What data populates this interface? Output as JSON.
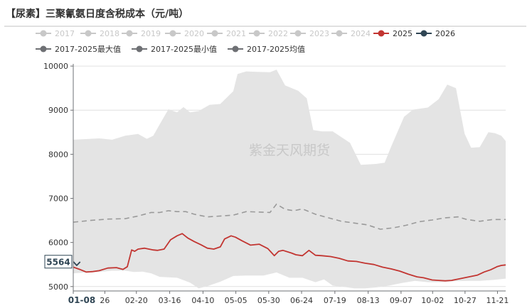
{
  "title": "【尿素】三聚氰氨日度含税成本（元/吨）",
  "watermark": "紫金天风期货",
  "latest_label": "5564",
  "colors": {
    "band": "#e4e4e4",
    "legend_inactive": "#c8c8c8",
    "series_2025": "#c23531",
    "series_2026": "#2f4554",
    "avg": "#9a9a9a",
    "stat_icon": "#6e7074",
    "title_rule": "#c0c0c0",
    "axis": "#6e7074",
    "grid": "#e0e0e0",
    "text": "#333333",
    "watermark": "#c8c8c8"
  },
  "legend_rows": [
    [
      {
        "label": "2017",
        "state": "inactive"
      },
      {
        "label": "2018",
        "state": "inactive"
      },
      {
        "label": "2019",
        "state": "inactive"
      },
      {
        "label": "2020",
        "state": "inactive"
      },
      {
        "label": "2021",
        "state": "inactive"
      },
      {
        "label": "2022",
        "state": "inactive"
      },
      {
        "label": "2023",
        "state": "inactive"
      },
      {
        "label": "2024",
        "state": "inactive"
      },
      {
        "label": "2025",
        "state": "active",
        "color_key": "series_2025"
      },
      {
        "label": "2026",
        "state": "active",
        "color_key": "series_2026"
      }
    ],
    [
      {
        "label": "2017-2025最大值",
        "state": "active",
        "color_key": "stat_icon"
      },
      {
        "label": "2017-2025最小值",
        "state": "active",
        "color_key": "stat_icon"
      },
      {
        "label": "2017-2025均值",
        "state": "active",
        "color_key": "stat_icon"
      }
    ]
  ],
  "chart_data": {
    "type": "area",
    "title": "【尿素】三聚氰氨日度含税成本（元/吨）",
    "y_ticks": [
      5000,
      6000,
      7000,
      8000,
      9000,
      10000
    ],
    "ylim": [
      4900,
      10050
    ],
    "x_ticks": [
      "01-08",
      "26",
      "02-20",
      "03-16",
      "04-10",
      "05-05",
      "05-30",
      "06-24",
      "07-19",
      "08-13",
      "09-07",
      "10-02",
      "10-27",
      "11-21"
    ],
    "x_domain": [
      0,
      100
    ],
    "x_tick_positions": [
      0,
      7.3,
      14.6,
      22.3,
      30.0,
      37.6,
      45.2,
      52.8,
      60.5,
      68.2,
      75.8,
      83.1,
      90.6,
      98.1
    ],
    "highlight_tick": "01-08",
    "max_series": {
      "name": "2017-2025最大值",
      "x": [
        0,
        6,
        9,
        12,
        15,
        17,
        18.5,
        20,
        22,
        24,
        25.5,
        27,
        29,
        31.5,
        34,
        37,
        38,
        40,
        42.5,
        45.5,
        47,
        49,
        52,
        54,
        55.5,
        57.5,
        60,
        64,
        66.5,
        70,
        72,
        73.5,
        76.5,
        78.5,
        82,
        84.5,
        86.5,
        88.5,
        90.5,
        92,
        94,
        96,
        97.5,
        99,
        100
      ],
      "values": [
        8330,
        8360,
        8330,
        8420,
        8460,
        8350,
        8420,
        8680,
        9020,
        8950,
        9070,
        8950,
        8980,
        9120,
        9140,
        9430,
        9820,
        9880,
        9870,
        9860,
        9920,
        9560,
        9440,
        9270,
        8550,
        8520,
        8520,
        8260,
        7760,
        7780,
        7810,
        8170,
        8850,
        9010,
        9060,
        9250,
        9580,
        9500,
        8470,
        8150,
        8160,
        8500,
        8480,
        8420,
        8300
      ]
    },
    "min_series": {
      "name": "2017-2025最小值",
      "x": [
        0,
        3,
        6,
        9,
        12,
        14,
        16,
        18,
        20,
        24,
        27,
        29,
        31,
        34,
        37,
        40,
        44,
        47,
        50,
        53,
        56,
        58,
        60,
        62,
        65,
        67.5,
        70,
        73,
        76,
        79,
        82,
        85,
        88,
        91,
        94,
        97,
        100
      ],
      "values": [
        5300,
        5320,
        5330,
        5360,
        5360,
        5330,
        5340,
        5300,
        5220,
        5200,
        5090,
        4960,
        5010,
        5110,
        5240,
        5250,
        5250,
        5320,
        5200,
        5200,
        5100,
        5160,
        5020,
        5000,
        4960,
        4960,
        4980,
        5020,
        5080,
        5130,
        5100,
        5100,
        5120,
        5130,
        5130,
        5150,
        5180
      ]
    },
    "series": [
      {
        "name": "2017-2025均值",
        "style": "dashed",
        "color_key": "avg",
        "x": [
          0,
          4,
          8,
          12,
          15,
          18,
          20,
          22,
          24,
          26,
          28,
          31,
          34,
          37,
          40,
          43,
          45.5,
          47,
          49,
          51,
          53,
          56,
          59,
          62,
          65,
          68,
          71,
          74,
          77,
          80,
          83,
          86,
          89,
          91,
          94,
          97,
          100
        ],
        "values": [
          6460,
          6500,
          6530,
          6540,
          6600,
          6680,
          6680,
          6720,
          6700,
          6700,
          6640,
          6580,
          6600,
          6620,
          6700,
          6690,
          6680,
          6870,
          6750,
          6720,
          6760,
          6640,
          6560,
          6480,
          6440,
          6400,
          6300,
          6330,
          6390,
          6470,
          6510,
          6560,
          6580,
          6520,
          6480,
          6520,
          6520
        ]
      },
      {
        "name": "2025",
        "style": "solid",
        "color_key": "series_2025",
        "x": [
          0,
          1.5,
          3,
          4.5,
          6,
          8,
          10,
          11.5,
          12.5,
          13.5,
          14.2,
          15,
          16.5,
          18.5,
          19.5,
          21,
          22.5,
          24,
          25.2,
          26.5,
          28,
          29.5,
          31,
          32.5,
          34,
          35,
          36.5,
          37.5,
          39,
          41,
          43,
          45,
          46.5,
          47.5,
          48.5,
          50.5,
          51.5,
          53,
          54.5,
          56,
          57.5,
          59.5,
          61.5,
          63.5,
          65.5,
          67.5,
          69.5,
          71.5,
          73.5,
          75.5,
          77.5,
          79.5,
          81,
          83,
          84.5,
          86,
          87.5,
          89,
          90.5,
          92,
          93.5,
          95,
          96.5,
          98,
          99,
          100
        ],
        "values": [
          5440,
          5390,
          5330,
          5340,
          5360,
          5420,
          5430,
          5390,
          5450,
          5830,
          5800,
          5850,
          5870,
          5830,
          5820,
          5850,
          6060,
          6150,
          6200,
          6100,
          6020,
          5950,
          5870,
          5850,
          5900,
          6080,
          6150,
          6120,
          6040,
          5940,
          5960,
          5860,
          5700,
          5800,
          5820,
          5760,
          5720,
          5700,
          5820,
          5710,
          5700,
          5680,
          5640,
          5580,
          5570,
          5530,
          5500,
          5440,
          5400,
          5350,
          5280,
          5220,
          5200,
          5150,
          5140,
          5130,
          5140,
          5170,
          5200,
          5230,
          5260,
          5330,
          5380,
          5450,
          5480,
          5490
        ]
      },
      {
        "name": "2026",
        "style": "solid",
        "color_key": "series_2026",
        "x": [
          0,
          0.8,
          1.6
        ],
        "values": [
          5564,
          5480,
          5560
        ]
      }
    ]
  }
}
